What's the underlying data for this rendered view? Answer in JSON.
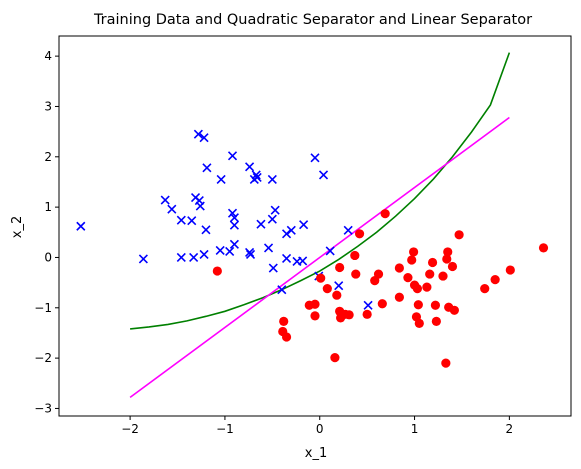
{
  "chart_data": {
    "type": "scatter",
    "title": "Training Data and Quadratic Separator and Linear Separator",
    "xlabel": "x_1",
    "ylabel": "x_2",
    "xlim": [
      -2.75,
      2.65
    ],
    "ylim": [
      -3.15,
      4.4
    ],
    "xticks": [
      -2,
      -1,
      0,
      1,
      2
    ],
    "yticks": [
      -3,
      -2,
      -1,
      0,
      1,
      2,
      3,
      4
    ],
    "grid": false,
    "series": [
      {
        "marker": "x",
        "color": "#0000ff",
        "points": [
          [
            -2.52,
            0.62
          ],
          [
            -1.63,
            1.14
          ],
          [
            -1.56,
            0.96
          ],
          [
            -1.46,
            0.74
          ],
          [
            -1.35,
            0.73
          ],
          [
            -1.31,
            1.19
          ],
          [
            -1.28,
            2.45
          ],
          [
            -1.22,
            2.38
          ],
          [
            -1.27,
            1.13
          ],
          [
            -1.26,
            1.02
          ],
          [
            -1.19,
            1.78
          ],
          [
            -1.2,
            0.55
          ],
          [
            -1.04,
            1.55
          ],
          [
            -0.92,
            2.02
          ],
          [
            -0.92,
            0.88
          ],
          [
            -0.9,
            0.79
          ],
          [
            -0.9,
            0.64
          ],
          [
            -0.95,
            0.12
          ],
          [
            -0.74,
            1.8
          ],
          [
            -0.69,
            1.55
          ],
          [
            -0.66,
            1.59
          ],
          [
            -0.67,
            1.64
          ],
          [
            -0.5,
            1.55
          ],
          [
            -0.62,
            0.66
          ],
          [
            -0.5,
            0.76
          ],
          [
            -0.47,
            0.94
          ],
          [
            -0.3,
            0.54
          ],
          [
            -0.35,
            0.47
          ],
          [
            -0.17,
            0.65
          ],
          [
            -1.86,
            -0.03
          ],
          [
            -1.46,
            0.0
          ],
          [
            -1.33,
            0.0
          ],
          [
            -1.22,
            0.06
          ],
          [
            -1.05,
            0.14
          ],
          [
            -0.9,
            0.26
          ],
          [
            -0.74,
            0.1
          ],
          [
            -0.73,
            0.06
          ],
          [
            -0.54,
            0.19
          ],
          [
            -0.49,
            -0.21
          ],
          [
            -0.35,
            -0.02
          ],
          [
            -0.24,
            -0.08
          ],
          [
            -0.18,
            -0.07
          ],
          [
            -0.05,
            1.98
          ],
          [
            0.04,
            1.64
          ],
          [
            0.11,
            0.13
          ],
          [
            0.3,
            0.54
          ],
          [
            -0.4,
            -0.64
          ],
          [
            -0.01,
            -0.37
          ],
          [
            0.2,
            -0.56
          ],
          [
            0.51,
            -0.95
          ]
        ]
      },
      {
        "marker": "o",
        "color": "#ff0000",
        "points": [
          [
            -1.08,
            -0.27
          ],
          [
            -0.38,
            -1.27
          ],
          [
            -0.39,
            -1.47
          ],
          [
            -0.35,
            -1.58
          ],
          [
            0.16,
            -1.99
          ],
          [
            0.01,
            -0.41
          ],
          [
            0.08,
            -0.62
          ],
          [
            -0.11,
            -0.95
          ],
          [
            -0.05,
            -0.93
          ],
          [
            -0.05,
            -1.16
          ],
          [
            0.18,
            -0.75
          ],
          [
            0.21,
            -1.07
          ],
          [
            0.22,
            -1.2
          ],
          [
            0.27,
            -1.13
          ],
          [
            0.31,
            -1.14
          ],
          [
            0.21,
            -0.2
          ],
          [
            0.37,
            0.04
          ],
          [
            0.38,
            -0.33
          ],
          [
            0.5,
            -1.13
          ],
          [
            0.58,
            -0.46
          ],
          [
            0.62,
            -0.33
          ],
          [
            0.66,
            -0.92
          ],
          [
            0.42,
            0.47
          ],
          [
            0.69,
            0.87
          ],
          [
            0.84,
            -0.21
          ],
          [
            0.84,
            -0.79
          ],
          [
            0.93,
            -0.4
          ],
          [
            0.97,
            -0.05
          ],
          [
            1.0,
            -0.55
          ],
          [
            1.03,
            -0.62
          ],
          [
            0.99,
            0.11
          ],
          [
            1.02,
            -1.18
          ],
          [
            1.05,
            -1.31
          ],
          [
            1.04,
            -0.94
          ],
          [
            1.13,
            -0.59
          ],
          [
            1.16,
            -0.33
          ],
          [
            1.19,
            -0.1
          ],
          [
            1.22,
            -0.95
          ],
          [
            1.23,
            -1.27
          ],
          [
            1.3,
            -0.37
          ],
          [
            1.34,
            -0.03
          ],
          [
            1.35,
            0.11
          ],
          [
            1.36,
            -0.99
          ],
          [
            1.33,
            -2.1
          ],
          [
            1.4,
            -0.18
          ],
          [
            1.42,
            -1.05
          ],
          [
            1.47,
            0.45
          ],
          [
            1.74,
            -0.62
          ],
          [
            1.85,
            -0.44
          ],
          [
            2.01,
            -0.25
          ],
          [
            2.36,
            0.19
          ]
        ]
      }
    ],
    "curves": [
      {
        "style": "line",
        "color": "#008000",
        "x": [
          -2.0,
          -1.8,
          -1.6,
          -1.4,
          -1.2,
          -1.0,
          -0.8,
          -0.6,
          -0.4,
          -0.2,
          0.0,
          0.2,
          0.4,
          0.6,
          0.8,
          1.0,
          1.2,
          1.4,
          1.6,
          1.8,
          2.0
        ],
        "y": [
          -1.42,
          -1.38,
          -1.33,
          -1.26,
          -1.17,
          -1.07,
          -0.94,
          -0.8,
          -0.64,
          -0.46,
          -0.27,
          -0.04,
          0.22,
          0.5,
          0.82,
          1.17,
          1.56,
          2.0,
          2.49,
          3.03,
          4.07
        ]
      },
      {
        "style": "line",
        "color": "#ff00ff",
        "x": [
          -2.0,
          2.0
        ],
        "y": [
          -2.78,
          2.78
        ]
      }
    ]
  }
}
